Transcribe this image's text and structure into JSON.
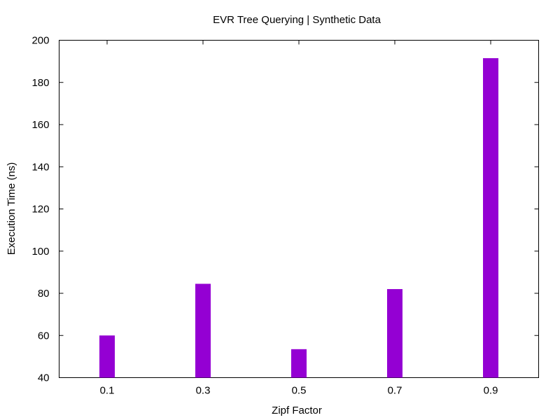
{
  "chart_data": {
    "type": "bar",
    "title": "EVR Tree Querying | Synthetic Data",
    "xlabel": "Zipf Factor",
    "ylabel": "Execution Time (ns)",
    "categories": [
      "0.1",
      "0.3",
      "0.5",
      "0.7",
      "0.9"
    ],
    "values": [
      60,
      84.5,
      53.5,
      82,
      191.5
    ],
    "ylim": [
      40,
      200
    ],
    "yticks": [
      "40",
      "60",
      "80",
      "100",
      "120",
      "140",
      "160",
      "180",
      "200"
    ],
    "bar_color": "#9400d3",
    "grid": false,
    "legend": "none"
  }
}
